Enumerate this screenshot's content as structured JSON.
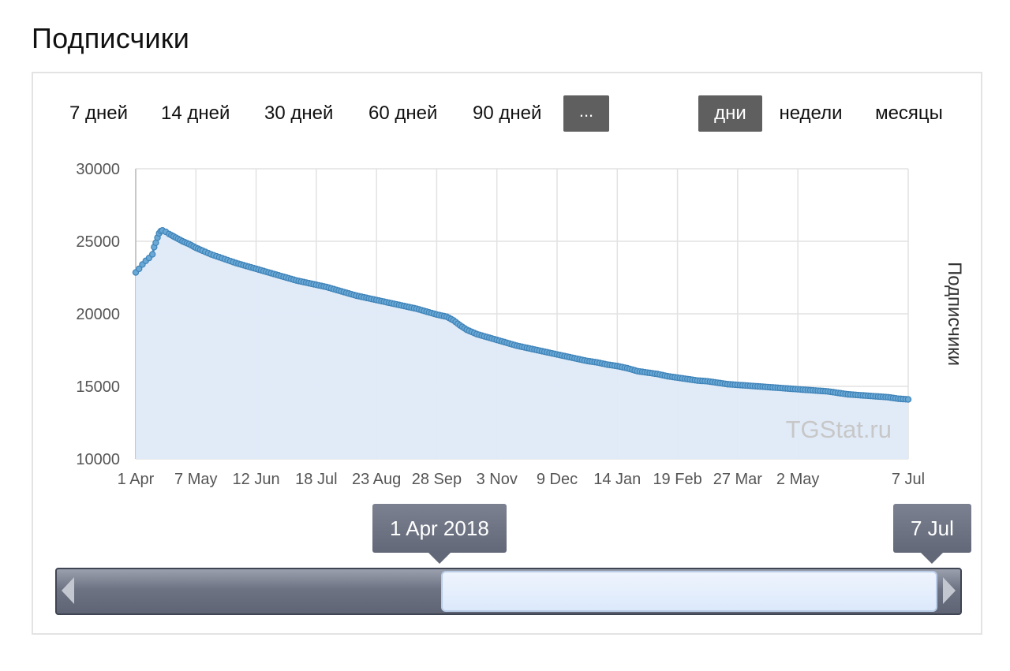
{
  "page": {
    "title": "Подписчики"
  },
  "range_buttons": [
    "7 дней",
    "14 дней",
    "30 дней",
    "60 дней",
    "90 дней",
    "..."
  ],
  "period_buttons": [
    {
      "label": "дни",
      "active": true
    },
    {
      "label": "недели",
      "active": false
    },
    {
      "label": "месяцы",
      "active": false
    }
  ],
  "colors": {
    "line": "#4a90c2",
    "area": "#dfeaf8",
    "grid": "#e2e2e2",
    "button_active": "#5f5f5f"
  },
  "watermark": "TGStat.ru",
  "navigator": {
    "start_label": "1 Apr 2018",
    "end_label": "7 Jul",
    "selection_start_fraction": 0.425,
    "selection_end_fraction": 0.975
  },
  "chart_data": {
    "type": "area",
    "title": "",
    "xlabel": "",
    "ylabel": "Подписчики",
    "ylim": [
      10000,
      30000
    ],
    "yticks": [
      10000,
      15000,
      20000,
      25000,
      30000
    ],
    "x_ticks": [
      "1 Apr",
      "7 May",
      "12 Jun",
      "18 Jul",
      "23 Aug",
      "28 Sep",
      "3 Nov",
      "9 Dec",
      "14 Jan",
      "19 Feb",
      "27 Mar",
      "2 May",
      "7 Jul"
    ],
    "x_tick_days": [
      0,
      36,
      72,
      108,
      144,
      180,
      216,
      252,
      288,
      324,
      360,
      396,
      462
    ],
    "x_range_days": [
      0,
      462
    ],
    "grid": true,
    "legend": "none",
    "series": [
      {
        "name": "Подписчики",
        "points": [
          [
            0,
            22850
          ],
          [
            2,
            23100
          ],
          [
            4,
            23400
          ],
          [
            6,
            23650
          ],
          [
            8,
            23850
          ],
          [
            10,
            24100
          ],
          [
            11,
            24600
          ],
          [
            12,
            24900
          ],
          [
            13,
            25250
          ],
          [
            14,
            25550
          ],
          [
            15,
            25700
          ],
          [
            16,
            25750
          ],
          [
            18,
            25650
          ],
          [
            20,
            25500
          ],
          [
            24,
            25250
          ],
          [
            28,
            25000
          ],
          [
            32,
            24800
          ],
          [
            36,
            24550
          ],
          [
            40,
            24350
          ],
          [
            45,
            24100
          ],
          [
            50,
            23900
          ],
          [
            55,
            23700
          ],
          [
            60,
            23500
          ],
          [
            66,
            23300
          ],
          [
            72,
            23100
          ],
          [
            78,
            22900
          ],
          [
            84,
            22700
          ],
          [
            90,
            22500
          ],
          [
            96,
            22300
          ],
          [
            102,
            22150
          ],
          [
            108,
            22000
          ],
          [
            114,
            21850
          ],
          [
            120,
            21650
          ],
          [
            126,
            21450
          ],
          [
            132,
            21250
          ],
          [
            138,
            21100
          ],
          [
            144,
            20950
          ],
          [
            150,
            20800
          ],
          [
            156,
            20650
          ],
          [
            162,
            20500
          ],
          [
            168,
            20350
          ],
          [
            174,
            20150
          ],
          [
            180,
            19950
          ],
          [
            186,
            19800
          ],
          [
            190,
            19550
          ],
          [
            194,
            19200
          ],
          [
            198,
            18900
          ],
          [
            204,
            18600
          ],
          [
            210,
            18400
          ],
          [
            216,
            18200
          ],
          [
            222,
            18000
          ],
          [
            228,
            17800
          ],
          [
            234,
            17650
          ],
          [
            240,
            17500
          ],
          [
            246,
            17350
          ],
          [
            252,
            17200
          ],
          [
            258,
            17050
          ],
          [
            264,
            16900
          ],
          [
            270,
            16750
          ],
          [
            276,
            16650
          ],
          [
            282,
            16500
          ],
          [
            288,
            16400
          ],
          [
            294,
            16250
          ],
          [
            300,
            16050
          ],
          [
            306,
            15950
          ],
          [
            312,
            15850
          ],
          [
            318,
            15700
          ],
          [
            324,
            15600
          ],
          [
            330,
            15500
          ],
          [
            336,
            15400
          ],
          [
            342,
            15350
          ],
          [
            348,
            15250
          ],
          [
            354,
            15150
          ],
          [
            360,
            15100
          ],
          [
            366,
            15050
          ],
          [
            372,
            15000
          ],
          [
            378,
            14950
          ],
          [
            384,
            14900
          ],
          [
            390,
            14850
          ],
          [
            396,
            14800
          ],
          [
            402,
            14750
          ],
          [
            408,
            14700
          ],
          [
            414,
            14650
          ],
          [
            420,
            14550
          ],
          [
            426,
            14450
          ],
          [
            432,
            14400
          ],
          [
            438,
            14350
          ],
          [
            444,
            14300
          ],
          [
            450,
            14250
          ],
          [
            456,
            14150
          ],
          [
            462,
            14100
          ]
        ]
      }
    ]
  }
}
